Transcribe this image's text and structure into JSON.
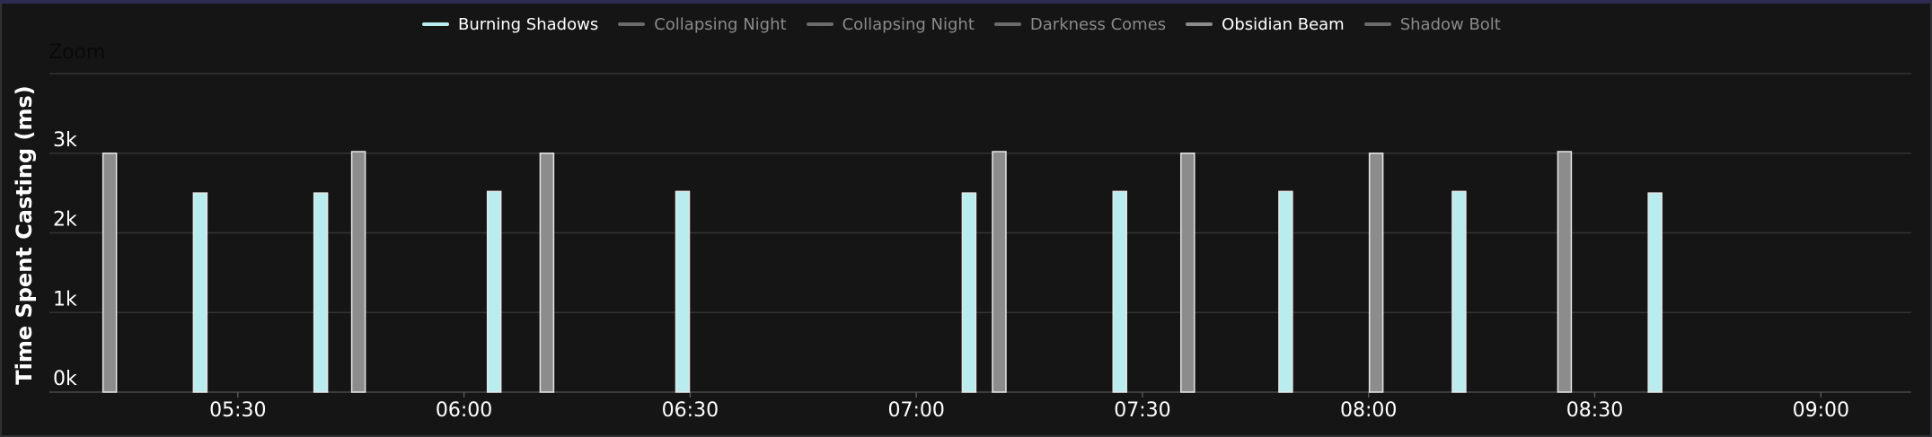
{
  "zoom_label": "Zoom",
  "legend": [
    {
      "label": "Burning Shadows",
      "color": "#b9ecef",
      "text_color": "#ffffff",
      "active": true
    },
    {
      "label": "Collapsing Night",
      "color": "#6b6b6b",
      "text_color": "#8a8a8a",
      "active": false
    },
    {
      "label": "Collapsing Night",
      "color": "#6b6b6b",
      "text_color": "#8a8a8a",
      "active": false
    },
    {
      "label": "Darkness Comes",
      "color": "#6b6b6b",
      "text_color": "#8a8a8a",
      "active": false
    },
    {
      "label": "Obsidian Beam",
      "color": "#8c8c8c",
      "text_color": "#ffffff",
      "active": true
    },
    {
      "label": "Shadow Bolt",
      "color": "#6b6b6b",
      "text_color": "#8a8a8a",
      "active": false
    }
  ],
  "chart_data": {
    "type": "bar",
    "title": "",
    "xlabel": "",
    "ylabel": "Time Spent Casting (ms)",
    "x_ticks": [
      "05:30",
      "06:00",
      "06:30",
      "07:00",
      "07:30",
      "08:00",
      "08:30",
      "09:00"
    ],
    "y_ticks": [
      "0k",
      "1k",
      "2k",
      "3k"
    ],
    "ylim": [
      0,
      4000
    ],
    "xlim": [
      "05:05",
      "09:12"
    ],
    "grid": true,
    "legend_position": "top",
    "series": [
      {
        "name": "Burning Shadows",
        "color": "#b9ecef",
        "points": [
          {
            "x": "05:25",
            "y": 2500
          },
          {
            "x": "05:41",
            "y": 2500
          },
          {
            "x": "06:04",
            "y": 2520
          },
          {
            "x": "06:29",
            "y": 2520
          },
          {
            "x": "07:07",
            "y": 2500
          },
          {
            "x": "07:27",
            "y": 2520
          },
          {
            "x": "07:49",
            "y": 2520
          },
          {
            "x": "08:12",
            "y": 2520
          },
          {
            "x": "08:38",
            "y": 2500
          }
        ]
      },
      {
        "name": "Obsidian Beam",
        "color": "#8c8c8c",
        "points": [
          {
            "x": "05:13",
            "y": 3000
          },
          {
            "x": "05:46",
            "y": 3020
          },
          {
            "x": "06:11",
            "y": 3000
          },
          {
            "x": "07:11",
            "y": 3020
          },
          {
            "x": "07:36",
            "y": 3000
          },
          {
            "x": "08:01",
            "y": 3000
          },
          {
            "x": "08:26",
            "y": 3020
          }
        ]
      }
    ]
  }
}
